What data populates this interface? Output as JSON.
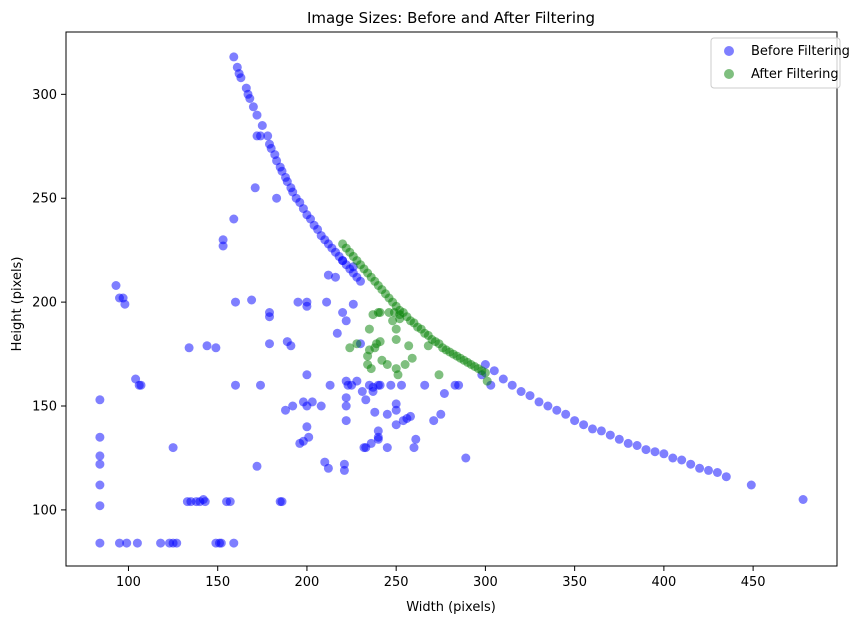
{
  "chart_data": {
    "type": "scatter",
    "title": "Image Sizes: Before and After Filtering",
    "xlabel": "Width (pixels)",
    "ylabel": "Height (pixels)",
    "xlim": [
      65,
      497
    ],
    "ylim": [
      73,
      330
    ],
    "xticks": [
      100,
      150,
      200,
      250,
      300,
      350,
      400,
      450
    ],
    "yticks": [
      100,
      150,
      200,
      250,
      300
    ],
    "grid": false,
    "legend_position": "top-right",
    "series": [
      {
        "name": "Before Filtering",
        "color": "#0000ff",
        "opacity": 0.5,
        "points": [
          [
            159,
            318
          ],
          [
            161,
            313
          ],
          [
            162,
            310
          ],
          [
            163,
            308
          ],
          [
            166,
            303
          ],
          [
            167,
            300
          ],
          [
            168,
            298
          ],
          [
            170,
            294
          ],
          [
            172,
            290
          ],
          [
            172,
            280
          ],
          [
            174,
            280
          ],
          [
            175,
            285
          ],
          [
            178,
            280
          ],
          [
            179,
            276
          ],
          [
            180,
            274
          ],
          [
            182,
            271
          ],
          [
            183,
            268
          ],
          [
            185,
            265
          ],
          [
            186,
            263
          ],
          [
            188,
            260
          ],
          [
            189,
            258
          ],
          [
            191,
            255
          ],
          [
            192,
            253
          ],
          [
            194,
            250
          ],
          [
            196,
            248
          ],
          [
            198,
            245
          ],
          [
            200,
            242
          ],
          [
            202,
            240
          ],
          [
            204,
            237
          ],
          [
            206,
            235
          ],
          [
            208,
            232
          ],
          [
            210,
            230
          ],
          [
            212,
            228
          ],
          [
            214,
            226
          ],
          [
            216,
            224
          ],
          [
            218,
            222
          ],
          [
            220,
            220
          ],
          [
            222,
            218
          ],
          [
            224,
            216
          ],
          [
            226,
            214
          ],
          [
            228,
            212
          ],
          [
            230,
            210
          ],
          [
            300,
            170
          ],
          [
            305,
            167
          ],
          [
            310,
            163
          ],
          [
            315,
            160
          ],
          [
            320,
            157
          ],
          [
            325,
            155
          ],
          [
            330,
            152
          ],
          [
            335,
            150
          ],
          [
            340,
            148
          ],
          [
            345,
            146
          ],
          [
            350,
            143
          ],
          [
            355,
            141
          ],
          [
            360,
            139
          ],
          [
            365,
            138
          ],
          [
            370,
            136
          ],
          [
            375,
            134
          ],
          [
            380,
            132
          ],
          [
            385,
            131
          ],
          [
            390,
            129
          ],
          [
            395,
            128
          ],
          [
            400,
            127
          ],
          [
            405,
            125
          ],
          [
            410,
            124
          ],
          [
            415,
            122
          ],
          [
            420,
            120
          ],
          [
            425,
            119
          ],
          [
            430,
            118
          ],
          [
            435,
            116
          ],
          [
            449,
            112
          ],
          [
            478,
            105
          ],
          [
            84,
            153
          ],
          [
            84,
            135
          ],
          [
            84,
            126
          ],
          [
            84,
            122
          ],
          [
            84,
            112
          ],
          [
            84,
            102
          ],
          [
            84,
            84
          ],
          [
            93,
            208
          ],
          [
            95,
            202
          ],
          [
            97,
            202
          ],
          [
            98,
            199
          ],
          [
            95,
            84
          ],
          [
            99,
            84
          ],
          [
            105,
            84
          ],
          [
            104,
            163
          ],
          [
            106,
            160
          ],
          [
            107,
            160
          ],
          [
            118,
            84
          ],
          [
            123,
            84
          ],
          [
            125,
            84
          ],
          [
            127,
            84
          ],
          [
            125,
            130
          ],
          [
            133,
            104
          ],
          [
            135,
            104
          ],
          [
            134,
            178
          ],
          [
            138,
            104
          ],
          [
            140,
            104
          ],
          [
            142,
            105
          ],
          [
            143,
            104
          ],
          [
            144,
            179
          ],
          [
            149,
            178
          ],
          [
            149,
            84
          ],
          [
            151,
            84
          ],
          [
            152,
            84
          ],
          [
            153,
            227
          ],
          [
            153,
            230
          ],
          [
            155,
            104
          ],
          [
            157,
            104
          ],
          [
            159,
            84
          ],
          [
            159,
            240
          ],
          [
            160,
            200
          ],
          [
            160,
            160
          ],
          [
            169,
            201
          ],
          [
            171,
            255
          ],
          [
            172,
            121
          ],
          [
            174,
            160
          ],
          [
            179,
            195
          ],
          [
            179,
            193
          ],
          [
            179,
            180
          ],
          [
            183,
            250
          ],
          [
            185,
            104
          ],
          [
            186,
            104
          ],
          [
            188,
            148
          ],
          [
            189,
            181
          ],
          [
            191,
            179
          ],
          [
            192,
            150
          ],
          [
            195,
            200
          ],
          [
            196,
            132
          ],
          [
            198,
            133
          ],
          [
            198,
            152
          ],
          [
            200,
            200
          ],
          [
            200,
            198
          ],
          [
            200,
            150
          ],
          [
            200,
            140
          ],
          [
            200,
            165
          ],
          [
            201,
            135
          ],
          [
            203,
            152
          ],
          [
            208,
            150
          ],
          [
            210,
            123
          ],
          [
            211,
            200
          ],
          [
            212,
            120
          ],
          [
            212,
            213
          ],
          [
            213,
            160
          ],
          [
            216,
            212
          ],
          [
            217,
            185
          ],
          [
            220,
            220
          ],
          [
            220,
            195
          ],
          [
            221,
            122
          ],
          [
            221,
            119
          ],
          [
            222,
            191
          ],
          [
            222,
            154
          ],
          [
            222,
            150
          ],
          [
            222,
            143
          ],
          [
            223,
            160
          ],
          [
            222,
            162
          ],
          [
            225,
            160
          ],
          [
            226,
            199
          ],
          [
            226,
            217
          ],
          [
            228,
            162
          ],
          [
            230,
            180
          ],
          [
            232,
            130
          ],
          [
            231,
            157
          ],
          [
            233,
            153
          ],
          [
            233,
            130
          ],
          [
            235,
            160
          ],
          [
            236,
            132
          ],
          [
            237,
            157
          ],
          [
            237,
            159
          ],
          [
            238,
            147
          ],
          [
            240,
            138
          ],
          [
            240,
            135
          ],
          [
            240,
            134
          ],
          [
            240,
            160
          ],
          [
            241,
            160
          ],
          [
            245,
            130
          ],
          [
            245,
            146
          ],
          [
            247,
            160
          ],
          [
            250,
            151
          ],
          [
            250,
            148
          ],
          [
            250,
            141
          ],
          [
            253,
            160
          ],
          [
            254,
            143
          ],
          [
            256,
            144
          ],
          [
            258,
            145
          ],
          [
            260,
            130
          ],
          [
            261,
            134
          ],
          [
            266,
            160
          ],
          [
            271,
            143
          ],
          [
            275,
            146
          ],
          [
            277,
            156
          ],
          [
            283,
            160
          ],
          [
            285,
            160
          ],
          [
            289,
            125
          ],
          [
            298,
            165
          ],
          [
            303,
            160
          ]
        ]
      },
      {
        "name": "After Filtering",
        "color": "#008000",
        "opacity": 0.5,
        "points": [
          [
            220,
            228
          ],
          [
            222,
            226
          ],
          [
            224,
            224
          ],
          [
            226,
            222
          ],
          [
            228,
            220
          ],
          [
            230,
            218
          ],
          [
            232,
            216
          ],
          [
            234,
            214
          ],
          [
            236,
            212
          ],
          [
            238,
            210
          ],
          [
            240,
            208
          ],
          [
            242,
            206
          ],
          [
            244,
            204
          ],
          [
            246,
            202
          ],
          [
            248,
            200
          ],
          [
            250,
            198
          ],
          [
            252,
            196
          ],
          [
            254,
            195
          ],
          [
            256,
            193
          ],
          [
            258,
            191
          ],
          [
            260,
            190
          ],
          [
            262,
            188
          ],
          [
            264,
            187
          ],
          [
            266,
            185
          ],
          [
            268,
            184
          ],
          [
            270,
            182
          ],
          [
            272,
            181
          ],
          [
            274,
            180
          ],
          [
            276,
            178
          ],
          [
            278,
            177
          ],
          [
            280,
            176
          ],
          [
            282,
            175
          ],
          [
            284,
            174
          ],
          [
            286,
            173
          ],
          [
            288,
            172
          ],
          [
            290,
            171
          ],
          [
            292,
            170
          ],
          [
            294,
            169
          ],
          [
            296,
            168
          ],
          [
            298,
            167
          ],
          [
            300,
            166
          ],
          [
            224,
            178
          ],
          [
            228,
            180
          ],
          [
            234,
            174
          ],
          [
            234,
            170
          ],
          [
            235,
            187
          ],
          [
            235,
            177
          ],
          [
            236,
            168
          ],
          [
            237,
            194
          ],
          [
            238,
            178
          ],
          [
            239,
            180
          ],
          [
            240,
            195
          ],
          [
            241,
            195
          ],
          [
            241,
            181
          ],
          [
            242,
            172
          ],
          [
            245,
            170
          ],
          [
            246,
            195
          ],
          [
            248,
            191
          ],
          [
            249,
            195
          ],
          [
            250,
            187
          ],
          [
            250,
            182
          ],
          [
            250,
            168
          ],
          [
            251,
            165
          ],
          [
            252,
            194
          ],
          [
            252,
            192
          ],
          [
            255,
            170
          ],
          [
            257,
            179
          ],
          [
            259,
            173
          ],
          [
            268,
            179
          ],
          [
            274,
            165
          ],
          [
            301,
            162
          ]
        ]
      }
    ]
  }
}
